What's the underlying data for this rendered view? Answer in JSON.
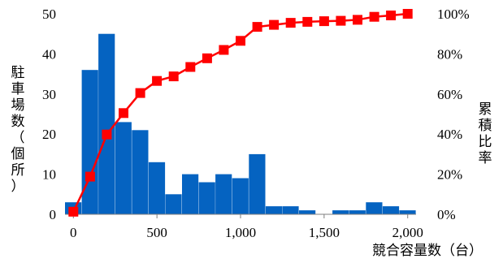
{
  "chart_data": {
    "type": "bar",
    "title": "",
    "xlabel": "競合容量数（台）",
    "ylabel": "駐車場数（個所）",
    "y2label": "累積比率",
    "xlim": [
      -50,
      2050
    ],
    "ylim": [
      0,
      50
    ],
    "y2lim": [
      0,
      100
    ],
    "x_ticks": [
      {
        "value": 0,
        "label": "0"
      },
      {
        "value": 500,
        "label": "500"
      },
      {
        "value": 1000,
        "label": "1,000"
      },
      {
        "value": 1500,
        "label": "1,500"
      },
      {
        "value": 2000,
        "label": "2,000"
      }
    ],
    "y_ticks": [
      0,
      10,
      20,
      30,
      40,
      50
    ],
    "y2_ticks": [
      "0%",
      "20%",
      "40%",
      "60%",
      "80%",
      "100%"
    ],
    "bin_width": 100,
    "series": [
      {
        "type": "bar",
        "color": "#0563C1",
        "bins": [
          {
            "x": 0,
            "value": 3
          },
          {
            "x": 100,
            "value": 36
          },
          {
            "x": 200,
            "value": 45
          },
          {
            "x": 300,
            "value": 23
          },
          {
            "x": 400,
            "value": 21
          },
          {
            "x": 500,
            "value": 13
          },
          {
            "x": 600,
            "value": 5
          },
          {
            "x": 700,
            "value": 10
          },
          {
            "x": 800,
            "value": 8
          },
          {
            "x": 900,
            "value": 10
          },
          {
            "x": 1000,
            "value": 9
          },
          {
            "x": 1100,
            "value": 15
          },
          {
            "x": 1200,
            "value": 2
          },
          {
            "x": 1300,
            "value": 2
          },
          {
            "x": 1400,
            "value": 1
          },
          {
            "x": 1500,
            "value": 0
          },
          {
            "x": 1600,
            "value": 1
          },
          {
            "x": 1700,
            "value": 1
          },
          {
            "x": 1800,
            "value": 3
          },
          {
            "x": 1900,
            "value": 2
          },
          {
            "x": 2000,
            "value": 1
          }
        ]
      },
      {
        "type": "line",
        "axis": "y2",
        "color": "#FF0000",
        "points": [
          {
            "x": 0,
            "y": 1.3
          },
          {
            "x": 100,
            "y": 18.8
          },
          {
            "x": 200,
            "y": 39.8
          },
          {
            "x": 300,
            "y": 50.5
          },
          {
            "x": 400,
            "y": 60.5
          },
          {
            "x": 500,
            "y": 66.5
          },
          {
            "x": 600,
            "y": 68.8
          },
          {
            "x": 700,
            "y": 73.5
          },
          {
            "x": 800,
            "y": 77.8
          },
          {
            "x": 900,
            "y": 82.0
          },
          {
            "x": 1000,
            "y": 86.5
          },
          {
            "x": 1100,
            "y": 93.5
          },
          {
            "x": 1200,
            "y": 94.5
          },
          {
            "x": 1300,
            "y": 95.5
          },
          {
            "x": 1400,
            "y": 96.0
          },
          {
            "x": 1500,
            "y": 96.3
          },
          {
            "x": 1600,
            "y": 96.5
          },
          {
            "x": 1700,
            "y": 97.0
          },
          {
            "x": 1800,
            "y": 98.5
          },
          {
            "x": 1900,
            "y": 99.2
          },
          {
            "x": 2000,
            "y": 100.0
          }
        ]
      }
    ],
    "grid": false,
    "legend": "none"
  }
}
